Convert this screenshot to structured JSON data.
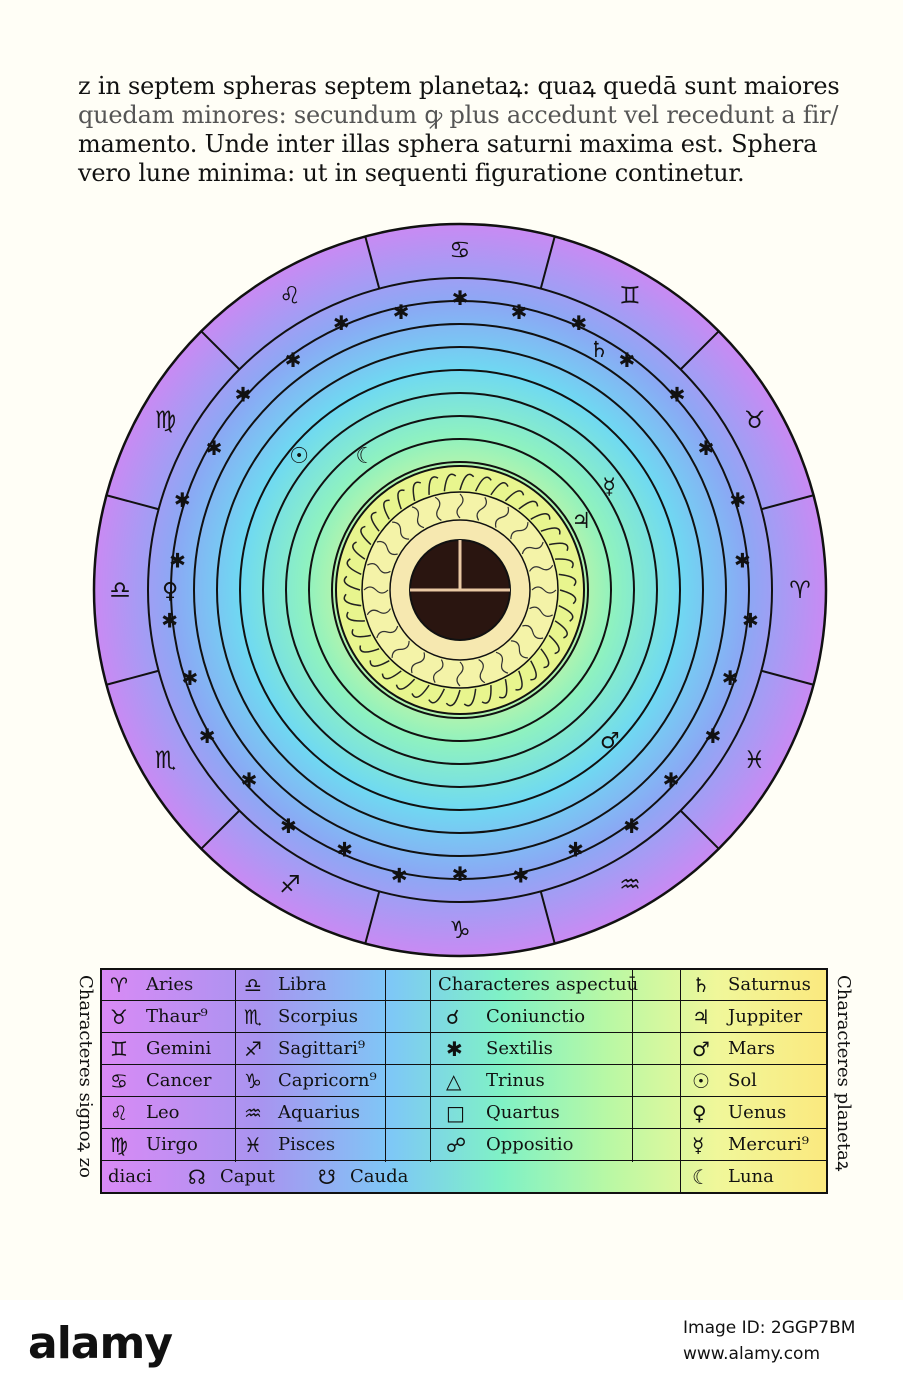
{
  "text_lines": [
    "z in septem spheras septem planetaꝝ: quaꝝ quedā sunt maiores",
    "quedam minores: secundum ꝙ plus accedunt vel recedunt a fir/",
    "mamento. Unde inter illas sphera saturni maxima est. Sphera",
    "vero lune minima: ut in sequenti figuratione continetur."
  ],
  "zodiac_ring": [
    "♊",
    "♉",
    "♈",
    "♓",
    "♒",
    "♑",
    "♐",
    "♏",
    "♎",
    "♍",
    "♌",
    "♋"
  ],
  "planet_markers": [
    {
      "symbol": "♄"
    },
    {
      "symbol": "♃"
    },
    {
      "symbol": "♂"
    },
    {
      "symbol": "☉"
    },
    {
      "symbol": "♀"
    },
    {
      "symbol": "☿"
    },
    {
      "symbol": "☾"
    }
  ],
  "legend": {
    "left_side_label": "Characteres signoꝝ zo",
    "right_side_label": "Characteres planetaꝝ",
    "signs_col1": [
      {
        "symbol": "♈",
        "name": "Aries"
      },
      {
        "symbol": "♉",
        "name": "Thaur⁹"
      },
      {
        "symbol": "♊",
        "name": "Gemini"
      },
      {
        "symbol": "♋",
        "name": "Cancer"
      },
      {
        "symbol": "♌",
        "name": "Leo"
      },
      {
        "symbol": "♍",
        "name": "Uirgo"
      }
    ],
    "signs_col2": [
      {
        "symbol": "♎",
        "name": "Libra"
      },
      {
        "symbol": "♏",
        "name": "Scorpius"
      },
      {
        "symbol": "♐",
        "name": "Sagittari⁹"
      },
      {
        "symbol": "♑",
        "name": "Capricorn⁹"
      },
      {
        "symbol": "♒",
        "name": "Aquarius"
      },
      {
        "symbol": "♓",
        "name": "Pisces"
      }
    ],
    "aspects_header": "Characteres aspectuū",
    "aspects": [
      {
        "symbol": "☌",
        "name": "Coniunctio"
      },
      {
        "symbol": "✱",
        "name": "Sextilis"
      },
      {
        "symbol": "△",
        "name": "Trinus"
      },
      {
        "symbol": "□",
        "name": "Quartus"
      },
      {
        "symbol": "☍",
        "name": "Oppositio"
      }
    ],
    "planets": [
      {
        "symbol": "♄",
        "name": "Saturnus"
      },
      {
        "symbol": "♃",
        "name": "Juppiter"
      },
      {
        "symbol": "♂",
        "name": "Mars"
      },
      {
        "symbol": "☉",
        "name": "Sol"
      },
      {
        "symbol": "♀",
        "name": "Uenus"
      },
      {
        "symbol": "☿",
        "name": "Mercuri⁹"
      },
      {
        "symbol": "☾",
        "name": "Luna"
      }
    ],
    "bottom_row": {
      "prefix": "diaci",
      "caput_symbol": "☊",
      "caput": "Caput",
      "cauda_symbol": "☋",
      "cauda": "Cauda"
    }
  },
  "footer": {
    "logo": "alamy",
    "image_id": "Image ID: 2GGP7BM",
    "url": "www.alamy.com"
  }
}
